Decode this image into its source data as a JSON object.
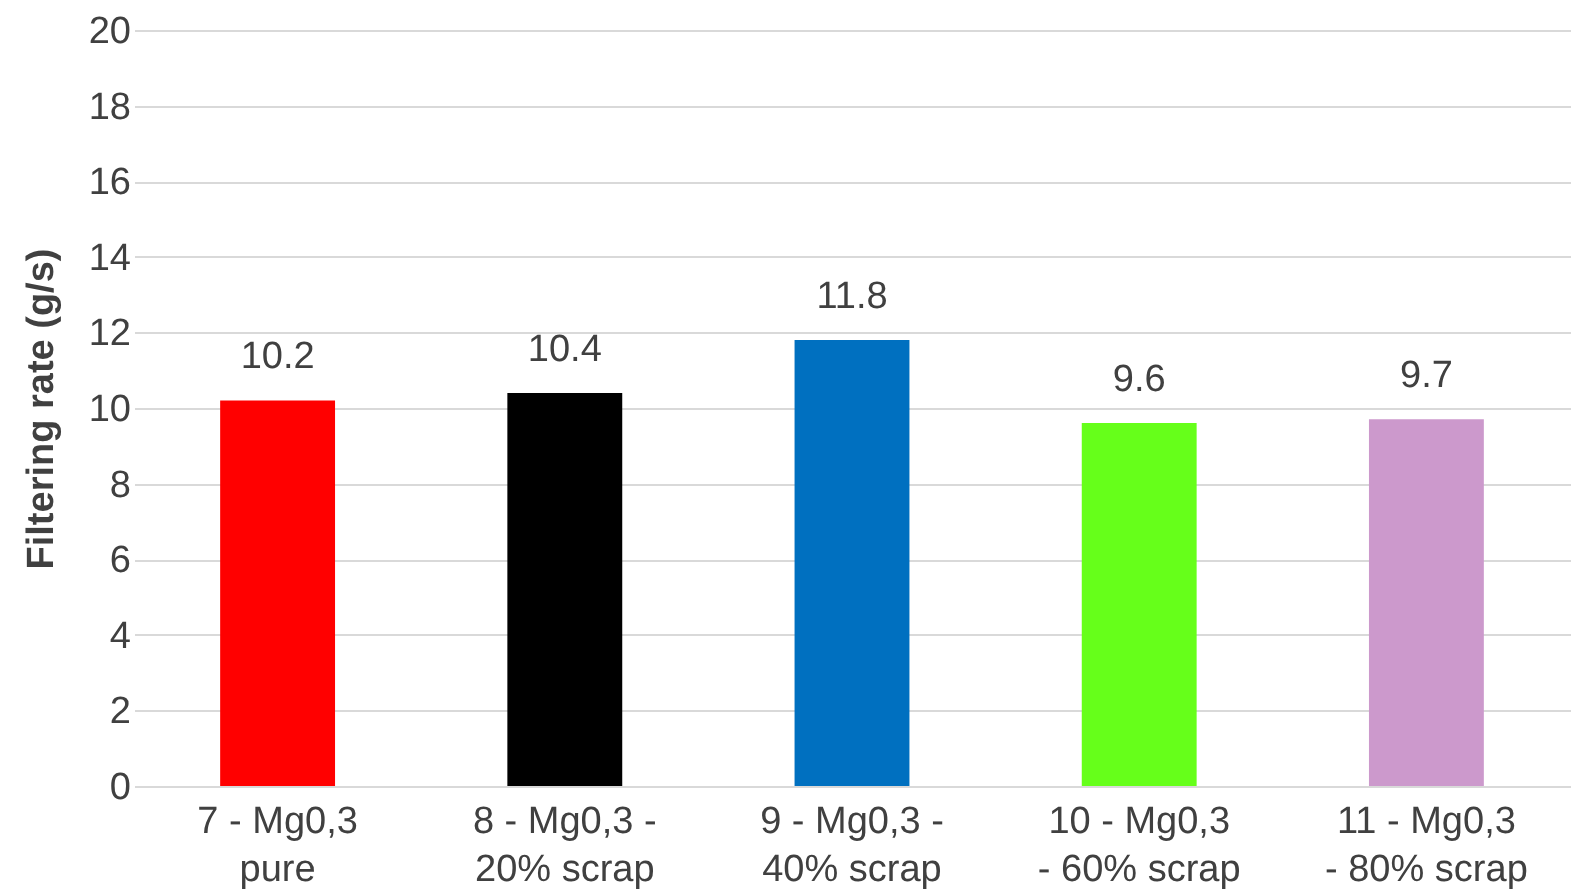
{
  "chart_data": {
    "type": "bar",
    "ylabel": "Filtering rate (g/s)",
    "categories": [
      "7 - Mg0,3 pure",
      "8 - Mg0,3 - 20% scrap",
      "9 - Mg0,3 - 40% scrap",
      "10 - Mg0,3 - 60% scrap",
      "11 - Mg0,3 - 80% scrap"
    ],
    "values": [
      10.2,
      10.4,
      11.8,
      9.6,
      9.7
    ],
    "colors": [
      "#ff0000",
      "#000000",
      "#0070c0",
      "#66ff1a",
      "#cc99cc"
    ],
    "ylim": [
      0,
      20
    ],
    "yticks": [
      0,
      2,
      4,
      6,
      8,
      10,
      12,
      14,
      16,
      18,
      20
    ],
    "grid": "y",
    "data_labels": true
  }
}
